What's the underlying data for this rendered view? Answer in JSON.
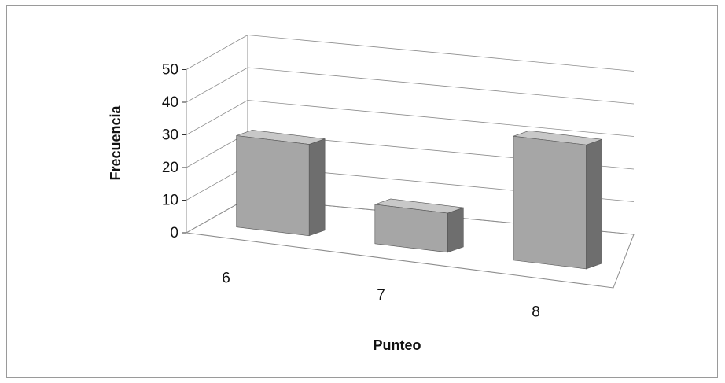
{
  "chart_data": {
    "type": "bar",
    "categories": [
      "6",
      "7",
      "8"
    ],
    "values": [
      28,
      12,
      38
    ],
    "xlabel": "Punteo",
    "ylabel": "Frecuencia",
    "ylim": [
      0,
      50
    ],
    "y_ticks": [
      "0",
      "10",
      "20",
      "30",
      "40",
      "50"
    ],
    "grid": true,
    "legend": "none",
    "style": "3d-column",
    "colors": {
      "front": "#a6a6a6",
      "side": "#6e6e6e",
      "top": "#c8c8c8",
      "grid": "#8c8c8c"
    }
  }
}
